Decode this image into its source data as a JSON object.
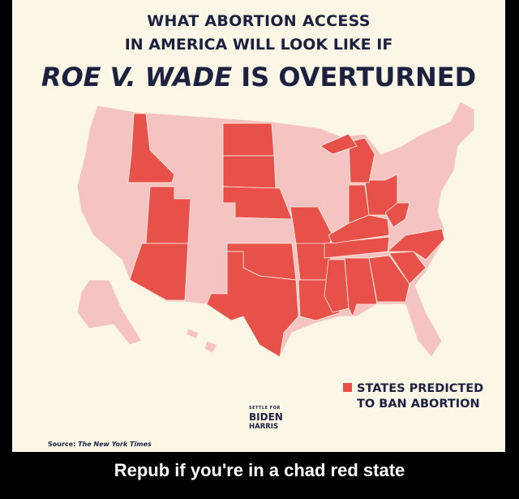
{
  "poster": {
    "title_line1": "WHAT ABORTION ACCESS",
    "title_line2": "IN AMERICA WILL LOOK LIKE IF",
    "title_line3_italic": "ROE V. WADE",
    "title_line3_rest": " IS OVERTURNED",
    "legend": {
      "line1": "STATES PREDICTED",
      "line2": "TO BAN ABORTION",
      "color": "#e8504a"
    },
    "other_states_color": "#f6c3c3",
    "logo": {
      "top": "SETTLE FOR",
      "middle": "BIDEN",
      "bottom": "HARRIS"
    },
    "source_label": "Source:",
    "source_name": "The New York Times",
    "states_predicted_to_ban": [
      "Idaho",
      "Utah",
      "Arizona",
      "North Dakota",
      "South Dakota",
      "Nebraska",
      "Oklahoma",
      "Texas",
      "Missouri",
      "Arkansas",
      "Louisiana",
      "Mississippi",
      "Alabama",
      "Tennessee",
      "Kentucky",
      "Georgia",
      "South Carolina",
      "North Carolina",
      "Indiana",
      "Ohio",
      "West Virginia",
      "Michigan"
    ]
  },
  "caption": "Repub if you're in a chad red state"
}
